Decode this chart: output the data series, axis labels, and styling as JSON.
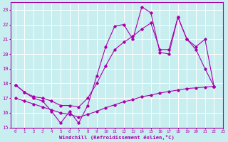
{
  "background_color": "#c8eef0",
  "grid_color": "#ffffff",
  "line_color": "#aa00aa",
  "xlim": [
    -0.5,
    23
  ],
  "ylim": [
    15,
    23.5
  ],
  "xlabel": "Windchill (Refroidissement éolien,°C)",
  "xticks": [
    0,
    1,
    2,
    3,
    4,
    5,
    6,
    7,
    8,
    9,
    10,
    11,
    12,
    13,
    14,
    15,
    16,
    17,
    18,
    19,
    20,
    21,
    22,
    23
  ],
  "yticks": [
    15,
    16,
    17,
    18,
    19,
    20,
    21,
    22,
    23
  ],
  "s1_x": [
    0,
    1,
    2,
    3,
    4,
    5,
    6,
    7,
    8,
    9,
    10,
    11,
    12,
    13,
    14,
    15,
    16,
    17,
    18,
    19,
    20,
    21,
    22
  ],
  "s1_y": [
    17.9,
    17.4,
    17.0,
    16.8,
    16.1,
    15.3,
    16.1,
    15.3,
    16.5,
    18.5,
    20.5,
    21.9,
    22.0,
    21.0,
    23.2,
    22.8,
    20.1,
    20.0,
    22.5,
    21.0,
    20.3,
    19.0,
    17.8
  ],
  "s2_x": [
    0,
    1,
    2,
    3,
    4,
    5,
    6,
    7,
    8,
    9,
    10,
    11,
    12,
    13,
    14,
    15,
    16,
    17,
    18,
    19,
    20,
    21,
    22
  ],
  "s2_y": [
    17.9,
    17.4,
    17.1,
    17.0,
    16.8,
    16.5,
    16.5,
    16.4,
    17.0,
    18.0,
    19.2,
    20.3,
    20.8,
    21.2,
    21.7,
    22.1,
    20.3,
    20.3,
    22.5,
    21.0,
    20.5,
    21.0,
    17.8
  ],
  "s3_x": [
    0,
    1,
    2,
    3,
    4,
    5,
    6,
    7,
    8,
    9,
    10,
    11,
    12,
    13,
    14,
    15,
    16,
    17,
    18,
    19,
    20,
    21,
    22
  ],
  "s3_y": [
    17.0,
    16.8,
    16.6,
    16.4,
    16.2,
    16.0,
    15.9,
    15.7,
    15.9,
    16.1,
    16.35,
    16.55,
    16.75,
    16.9,
    17.1,
    17.2,
    17.35,
    17.45,
    17.55,
    17.65,
    17.7,
    17.75,
    17.8
  ]
}
